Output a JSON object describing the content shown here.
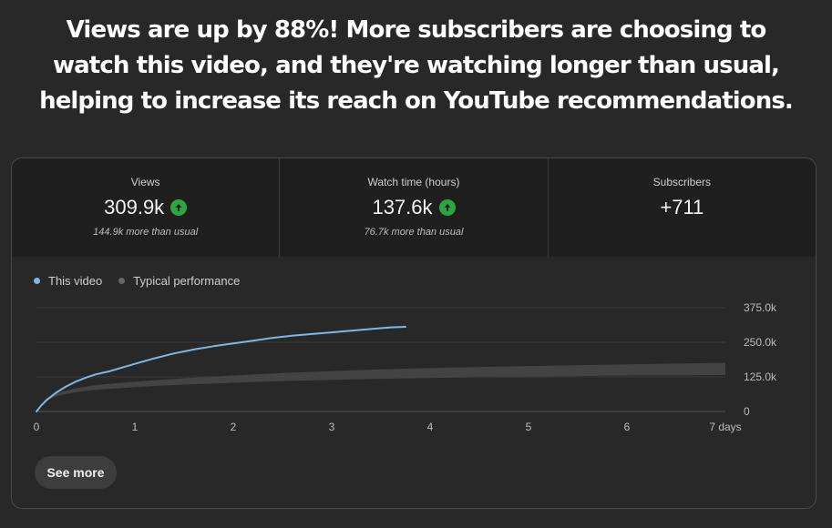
{
  "headline": "Views are up by 88%! More subscribers are choosing to watch this video, and they're watching longer than usual, helping to increase its reach on YouTube recommendations.",
  "metrics": [
    {
      "label": "Views",
      "value": "309.9k",
      "trend": "up",
      "sub": "144.9k more than usual"
    },
    {
      "label": "Watch time (hours)",
      "value": "137.6k",
      "trend": "up",
      "sub": "76.7k more than usual"
    },
    {
      "label": "Subscribers",
      "value": "+711",
      "trend": "",
      "sub": ""
    }
  ],
  "legend": {
    "this_video": "This video",
    "typical": "Typical performance"
  },
  "colors": {
    "this_video": "#7eb6e6",
    "typical": "#555555",
    "trend_up": "#2ba640"
  },
  "see_more_label": "See more",
  "chart_data": {
    "type": "line",
    "xlabel": "",
    "ylabel": "",
    "xlim": [
      0,
      7
    ],
    "ylim": [
      0,
      375000
    ],
    "x_ticks": [
      "0",
      "1",
      "2",
      "3",
      "4",
      "5",
      "6",
      "7 days"
    ],
    "y_ticks": [
      "375.0k",
      "250.0k",
      "125.0k",
      "0"
    ],
    "y_tick_values": [
      375000,
      250000,
      125000,
      0
    ],
    "series": [
      {
        "name": "This video",
        "x": [
          0,
          0.05,
          0.1,
          0.2,
          0.3,
          0.4,
          0.5,
          0.6,
          0.75,
          0.9,
          1.0,
          1.2,
          1.4,
          1.6,
          1.8,
          2.0,
          2.2,
          2.4,
          2.6,
          2.8,
          3.0,
          3.2,
          3.4,
          3.6,
          3.75
        ],
        "y": [
          0,
          22000,
          40000,
          68000,
          90000,
          108000,
          122000,
          134000,
          146000,
          162000,
          172000,
          192000,
          210000,
          224000,
          236000,
          246000,
          256000,
          266000,
          274000,
          280000,
          286000,
          292000,
          298000,
          304000,
          306000
        ]
      }
    ],
    "band": {
      "name": "Typical performance",
      "x": [
        0,
        0.1,
        0.2,
        0.4,
        0.6,
        0.8,
        1.0,
        1.5,
        2.0,
        2.5,
        3.0,
        3.5,
        4.0,
        4.5,
        5.0,
        5.5,
        6.0,
        6.5,
        7.0
      ],
      "lower": [
        0,
        40000,
        55000,
        70000,
        78000,
        83000,
        88000,
        97000,
        104000,
        110000,
        114000,
        118000,
        121000,
        124000,
        126000,
        128000,
        130000,
        131000,
        132000
      ],
      "upper": [
        0,
        48000,
        66000,
        84000,
        95000,
        102000,
        108000,
        120000,
        130000,
        139000,
        146000,
        152000,
        157000,
        161000,
        164000,
        167000,
        170000,
        173000,
        176000
      ]
    }
  }
}
